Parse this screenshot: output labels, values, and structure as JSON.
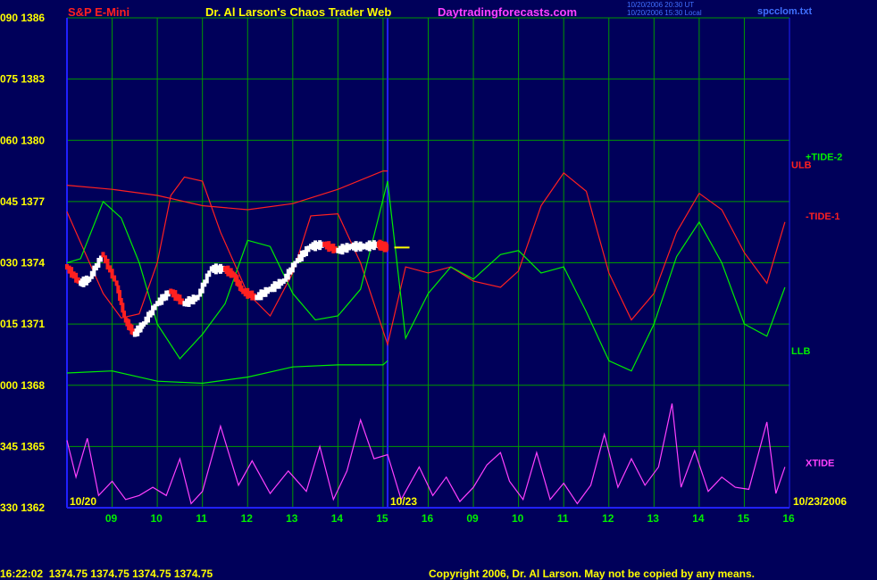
{
  "header": {
    "symbol": "S&P E-Mini",
    "title": "Dr. Al Larson's Chaos Trader Web",
    "site": "Daytradingforecasts.com",
    "stamp1": "10/20/2006 20:30 UT",
    "stamp2": "10/20/2006 15:30 Local",
    "file": "spcclom.txt"
  },
  "footer": {
    "quote": "16:22:02  1374.75 1374.75 1374.75 1374.75",
    "copyright": "Copyright 2006, Dr. Al Larson. May not be copied by any means."
  },
  "colors": {
    "background": "#00005a",
    "grid": "#009900",
    "axis": "#2020ff",
    "red": "#ff2020",
    "green": "#00ee00",
    "magenta": "#ff40ff",
    "yellow": "#ffff00",
    "white": "#ffffff"
  },
  "chart_data": {
    "type": "line",
    "y_ticks": [
      {
        "label": "090  1386",
        "price": 1386
      },
      {
        "label": "075  1383",
        "price": 1383
      },
      {
        "label": "060  1380",
        "price": 1380
      },
      {
        "label": "045  1377",
        "price": 1377
      },
      {
        "label": "030  1374",
        "price": 1374
      },
      {
        "label": "015  1371",
        "price": 1371
      },
      {
        "label": "000  1368",
        "price": 1368
      },
      {
        "label": "345  1365",
        "price": 1365
      },
      {
        "label": "330  1362",
        "price": 1362
      }
    ],
    "ylim": [
      1362,
      1386
    ],
    "x_ticks": [
      "09",
      "10",
      "11",
      "12",
      "13",
      "14",
      "15",
      "16",
      "09",
      "10",
      "11",
      "12",
      "13",
      "14",
      "15",
      "16"
    ],
    "date_labels": [
      "10/20",
      "10/23",
      "10/23/2006"
    ],
    "series_labels": [
      {
        "name": "+TIDE-2",
        "color": "#00ee00"
      },
      {
        "name": "ULB",
        "color": "#ff2020"
      },
      {
        "name": "-TIDE-1",
        "color": "#ff2020"
      },
      {
        "name": "LLB",
        "color": "#00ee00"
      },
      {
        "name": "XTIDE",
        "color": "#ff40ff"
      }
    ],
    "series": [
      {
        "name": "ULB",
        "color": "#ff2020",
        "x": [
          0,
          1,
          2,
          3,
          4,
          5,
          6,
          7,
          7.1
        ],
        "y": [
          1377.8,
          1377.6,
          1377.3,
          1376.8,
          1376.6,
          1376.9,
          1377.6,
          1378.5,
          1378.5
        ]
      },
      {
        "name": "-TIDE-1",
        "color": "#ff2020",
        "x": [
          0,
          0.4,
          0.8,
          1.2,
          1.6,
          2,
          2.3,
          2.6,
          3,
          3.4,
          4,
          4.5,
          5,
          5.4,
          6,
          6.5,
          7.1,
          7.5,
          8,
          8.5,
          9,
          9.6,
          10,
          10.5,
          11,
          11.5,
          12,
          12.5,
          13,
          13.5,
          14,
          14.5,
          15,
          15.5,
          15.9
        ],
        "y": [
          1376.5,
          1374.5,
          1372.5,
          1371.3,
          1371.5,
          1374.0,
          1377.3,
          1378.2,
          1378.0,
          1375.5,
          1372.5,
          1371.4,
          1373.5,
          1376.3,
          1376.4,
          1374.0,
          1370.0,
          1373.8,
          1373.5,
          1373.8,
          1373.1,
          1372.8,
          1373.6,
          1376.8,
          1378.4,
          1377.5,
          1373.5,
          1371.2,
          1372.5,
          1375.5,
          1377.4,
          1376.6,
          1374.5,
          1373.0,
          1376.0
        ]
      },
      {
        "name": "+TIDE-2",
        "color": "#00ee00",
        "x": [
          0,
          0.3,
          0.8,
          1.2,
          1.6,
          2,
          2.5,
          3,
          3.5,
          4,
          4.5,
          5,
          5.5,
          6,
          6.5,
          7.1,
          7.5,
          8,
          8.5,
          9,
          9.6,
          10,
          10.5,
          11,
          11.5,
          12,
          12.5,
          13,
          13.5,
          14,
          14.5,
          15,
          15.5,
          15.9
        ],
        "y": [
          1374.0,
          1374.2,
          1377.0,
          1376.2,
          1374.0,
          1371.0,
          1369.3,
          1370.5,
          1372.0,
          1375.1,
          1374.8,
          1372.5,
          1371.2,
          1371.4,
          1372.7,
          1378.0,
          1370.3,
          1372.5,
          1373.8,
          1373.2,
          1374.4,
          1374.6,
          1373.5,
          1373.8,
          1371.6,
          1369.2,
          1368.7,
          1371.0,
          1374.3,
          1376.0,
          1374.0,
          1371.0,
          1370.4,
          1372.8
        ]
      },
      {
        "name": "LLB",
        "color": "#00ee00",
        "x": [
          0,
          1,
          2,
          3,
          4,
          5,
          6,
          7,
          7.1
        ],
        "y": [
          1368.6,
          1368.7,
          1368.2,
          1368.1,
          1368.4,
          1368.9,
          1369.0,
          1369.0,
          1369.2
        ]
      },
      {
        "name": "XTIDE",
        "color": "#ff40ff",
        "x": [
          0,
          0.2,
          0.45,
          0.7,
          1,
          1.3,
          1.6,
          1.9,
          2.2,
          2.5,
          2.75,
          3,
          3.4,
          3.8,
          4.1,
          4.5,
          4.9,
          5.3,
          5.6,
          5.9,
          6.2,
          6.5,
          6.8,
          7.1,
          7.4,
          7.8,
          8.1,
          8.4,
          8.7,
          9,
          9.3,
          9.6,
          9.8,
          10.1,
          10.4,
          10.7,
          11,
          11.3,
          11.6,
          11.9,
          12.2,
          12.5,
          12.8,
          13.1,
          13.4,
          13.6,
          13.9,
          14.2,
          14.5,
          14.8,
          15.1,
          15.5,
          15.7,
          15.9
        ],
        "y": [
          1365.3,
          1363.5,
          1365.4,
          1362.6,
          1363.3,
          1362.4,
          1362.6,
          1363.0,
          1362.6,
          1364.4,
          1362.2,
          1362.8,
          1366.0,
          1363.1,
          1364.3,
          1362.7,
          1363.8,
          1362.8,
          1365.0,
          1362.4,
          1363.8,
          1366.3,
          1364.4,
          1364.6,
          1362.4,
          1364.0,
          1362.6,
          1363.5,
          1362.3,
          1363.0,
          1364.1,
          1364.7,
          1363.3,
          1362.4,
          1364.7,
          1362.4,
          1363.2,
          1362.2,
          1363.1,
          1365.6,
          1363.0,
          1364.4,
          1363.1,
          1364.0,
          1367.1,
          1363.0,
          1364.8,
          1362.8,
          1363.5,
          1363.0,
          1362.9,
          1366.2,
          1362.7,
          1364.0
        ]
      }
    ],
    "price_bars_approx": {
      "name": "S&P E-Mini price",
      "x": [
        0,
        0.3,
        0.5,
        0.8,
        1.1,
        1.3,
        1.5,
        1.7,
        2,
        2.3,
        2.6,
        2.9,
        3.2,
        3.5,
        3.7,
        3.9,
        4.2,
        4.5,
        4.8,
        5.1,
        5.4,
        5.7,
        6,
        6.3,
        6.6,
        6.9,
        7,
        7.1
      ],
      "y": [
        1373.8,
        1373.0,
        1373.2,
        1374.4,
        1373.0,
        1371.2,
        1370.5,
        1371.0,
        1372.0,
        1372.6,
        1372.0,
        1372.3,
        1373.7,
        1373.7,
        1373.4,
        1372.6,
        1372.3,
        1372.7,
        1373.1,
        1374.1,
        1374.8,
        1374.9,
        1374.6,
        1374.8,
        1374.8,
        1374.9,
        1374.8,
        1374.75
      ]
    }
  }
}
